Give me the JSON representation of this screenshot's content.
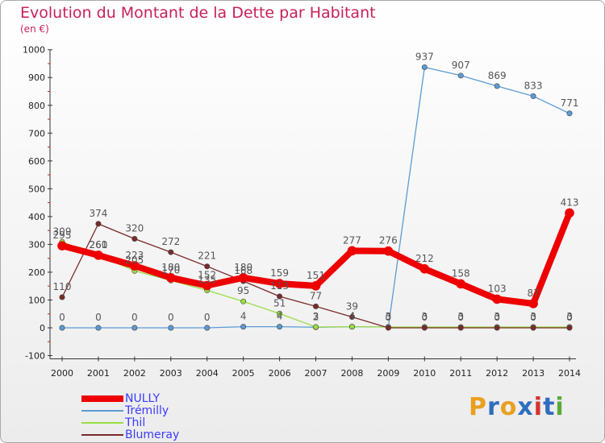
{
  "header": {
    "title": "Evolution du Montant de la Dette par Habitant",
    "subtitle": "(en €)"
  },
  "brand": {
    "text": "Proxiti",
    "colors": [
      "#e8a020",
      "#2e6ec0",
      "#e8a020",
      "#2e6ec0",
      "#d0362f",
      "#2e6ec0",
      "#5aaa3a"
    ]
  },
  "chart_data": {
    "type": "line",
    "x": [
      "2000",
      "2001",
      "2002",
      "2003",
      "2004",
      "2005",
      "2006",
      "2007",
      "2008",
      "2009",
      "2010",
      "2011",
      "2012",
      "2013",
      "2014"
    ],
    "ylim": [
      -100,
      1000
    ],
    "yticks": [
      "-100",
      "0",
      "100",
      "200",
      "300",
      "400",
      "500",
      "600",
      "700",
      "800",
      "900",
      "1000"
    ],
    "grid": false,
    "legend_position": "bottom-left",
    "series": [
      {
        "name": "Trémilly",
        "color": "#5b9bd5",
        "values": [
          0,
          0,
          0,
          0,
          0,
          4,
          4,
          2,
          4,
          3,
          937,
          907,
          869,
          833,
          771
        ],
        "labels": [
          "0",
          "0",
          "0",
          "0",
          "0",
          "4",
          "4",
          "2",
          "4",
          "3",
          "937",
          "907",
          "869",
          "833",
          "771"
        ]
      },
      {
        "name": "Thil",
        "color": "#99dd44",
        "values": [
          309,
          260,
          205,
          170,
          135,
          95,
          51,
          3,
          4,
          3,
          3,
          3,
          3,
          3,
          3
        ],
        "labels": [
          "309",
          "260",
          "205",
          "170",
          "135",
          "95",
          "51",
          "3",
          "4",
          "3",
          "3",
          "3",
          "3",
          "3",
          "3"
        ]
      },
      {
        "name": "Blumeray",
        "color": "#7a2a2a",
        "values": [
          110,
          374,
          320,
          272,
          221,
          168,
          113,
          77,
          39,
          0,
          0,
          0,
          0,
          0,
          0
        ],
        "labels": [
          "110",
          "374",
          "320",
          "272",
          "221",
          "168",
          "113",
          "77",
          "39",
          "0",
          "0",
          "0",
          "0",
          "0",
          "0"
        ]
      },
      {
        "name": "NULLY",
        "color": "#ee0000",
        "values": [
          295,
          261,
          223,
          180,
          152,
          180,
          159,
          151,
          277,
          276,
          212,
          158,
          103,
          87,
          413
        ],
        "labels": [
          "295",
          "261",
          "223",
          "180",
          "152",
          "180",
          "159",
          "151",
          "277",
          "276",
          "212",
          "158",
          "103",
          "87",
          "413"
        ]
      }
    ]
  }
}
